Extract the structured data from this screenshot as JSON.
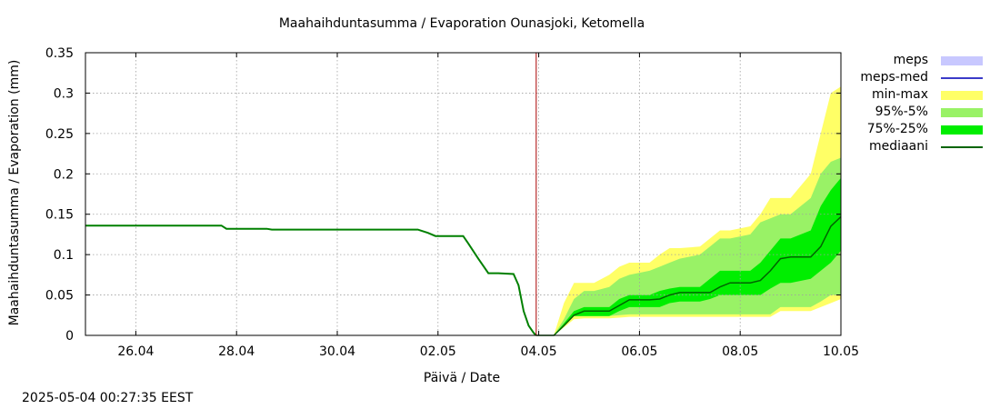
{
  "title": "Maahaihduntasumma / Evaporation   Ounasjoki, Ketomella",
  "timestamp": "2025-05-04 00:27:35 EEST",
  "chart_data": {
    "type": "area",
    "title": "Maahaihduntasumma / Evaporation   Ounasjoki, Ketomella",
    "xlabel": "Päivä / Date",
    "ylabel": "Maahaihduntasumma / Evaporation (mm)",
    "ylim": [
      0,
      0.35
    ],
    "xlim_days": [
      0,
      15
    ],
    "x_ticks": [
      {
        "day": 1,
        "label": "26.04"
      },
      {
        "day": 3,
        "label": "28.04"
      },
      {
        "day": 5,
        "label": "30.04"
      },
      {
        "day": 7,
        "label": "02.05"
      },
      {
        "day": 9,
        "label": "04.05"
      },
      {
        "day": 11,
        "label": "06.05"
      },
      {
        "day": 13,
        "label": "08.05"
      },
      {
        "day": 15,
        "label": "10.05"
      }
    ],
    "y_ticks": [
      0,
      0.05,
      0.1,
      0.15,
      0.2,
      0.25,
      0.3,
      0.35
    ],
    "grid": true,
    "legend_position": "right",
    "forecast_start_day": 8.95,
    "colors": {
      "meps": "#c8c8ff",
      "meps_med": "#3a3ac8",
      "min_max": "#ffff66",
      "p95_5": "#99f266",
      "p75_25": "#00ee00",
      "mediaani": "#006400",
      "observed": "#008000",
      "now_line": "#aa0000"
    },
    "legend": [
      {
        "key": "meps",
        "label": "meps",
        "kind": "swatch",
        "color": "#c8c8ff"
      },
      {
        "key": "meps_med",
        "label": "meps-med",
        "kind": "line",
        "color": "#3a3ac8"
      },
      {
        "key": "min_max",
        "label": "min-max",
        "kind": "swatch",
        "color": "#ffff66"
      },
      {
        "key": "p95_5",
        "label": "95%-5%",
        "kind": "swatch",
        "color": "#99f266"
      },
      {
        "key": "p75_25",
        "label": "75%-25%",
        "kind": "swatch",
        "color": "#00ee00"
      },
      {
        "key": "mediaani",
        "label": "mediaani",
        "kind": "line",
        "color": "#006400"
      }
    ],
    "observed": {
      "x": [
        0,
        2.7,
        2.8,
        3.6,
        3.7,
        6.6,
        6.8,
        6.95,
        7.5,
        7.6,
        7.8,
        8.0,
        8.2,
        8.5,
        8.6,
        8.7,
        8.8,
        8.9,
        8.95
      ],
      "y": [
        0.136,
        0.136,
        0.132,
        0.132,
        0.131,
        0.131,
        0.127,
        0.123,
        0.123,
        0.114,
        0.095,
        0.077,
        0.077,
        0.076,
        0.062,
        0.03,
        0.012,
        0.003,
        0.0
      ]
    },
    "forecast": {
      "x": [
        8.95,
        9.2,
        9.3,
        9.5,
        9.7,
        9.9,
        10.1,
        10.4,
        10.6,
        10.8,
        11.2,
        11.4,
        11.6,
        11.8,
        12.2,
        12.4,
        12.6,
        12.8,
        13.2,
        13.4,
        13.6,
        13.8,
        14.0,
        14.4,
        14.6,
        14.8,
        15.0
      ],
      "min": [
        0,
        0,
        0,
        0.01,
        0.02,
        0.021,
        0.021,
        0.021,
        0.022,
        0.023,
        0.023,
        0.023,
        0.023,
        0.023,
        0.023,
        0.023,
        0.023,
        0.023,
        0.023,
        0.023,
        0.023,
        0.03,
        0.03,
        0.03,
        0.035,
        0.04,
        0.045
      ],
      "p5": [
        0,
        0,
        0,
        0.012,
        0.024,
        0.024,
        0.024,
        0.024,
        0.025,
        0.026,
        0.026,
        0.026,
        0.026,
        0.026,
        0.026,
        0.026,
        0.026,
        0.026,
        0.026,
        0.026,
        0.026,
        0.035,
        0.035,
        0.035,
        0.042,
        0.05,
        0.05
      ],
      "p25": [
        0,
        0,
        0,
        0.013,
        0.024,
        0.024,
        0.024,
        0.024,
        0.03,
        0.035,
        0.035,
        0.035,
        0.04,
        0.042,
        0.042,
        0.045,
        0.05,
        0.05,
        0.05,
        0.05,
        0.058,
        0.065,
        0.065,
        0.07,
        0.08,
        0.09,
        0.105
      ],
      "median": [
        0,
        0,
        0,
        0.012,
        0.025,
        0.03,
        0.03,
        0.03,
        0.037,
        0.044,
        0.044,
        0.045,
        0.05,
        0.053,
        0.053,
        0.053,
        0.06,
        0.065,
        0.065,
        0.068,
        0.08,
        0.095,
        0.097,
        0.097,
        0.11,
        0.135,
        0.147
      ],
      "p75": [
        0,
        0,
        0,
        0.015,
        0.03,
        0.035,
        0.035,
        0.035,
        0.045,
        0.05,
        0.05,
        0.055,
        0.058,
        0.06,
        0.06,
        0.07,
        0.08,
        0.08,
        0.08,
        0.09,
        0.105,
        0.12,
        0.12,
        0.13,
        0.16,
        0.18,
        0.195
      ],
      "p95": [
        0,
        0,
        0,
        0.02,
        0.045,
        0.055,
        0.055,
        0.06,
        0.07,
        0.075,
        0.08,
        0.085,
        0.09,
        0.095,
        0.1,
        0.11,
        0.12,
        0.12,
        0.125,
        0.14,
        0.145,
        0.15,
        0.15,
        0.17,
        0.2,
        0.215,
        0.22
      ],
      "max": [
        0,
        0,
        0,
        0.04,
        0.065,
        0.065,
        0.065,
        0.075,
        0.085,
        0.09,
        0.09,
        0.1,
        0.108,
        0.108,
        0.11,
        0.12,
        0.13,
        0.13,
        0.135,
        0.15,
        0.17,
        0.17,
        0.17,
        0.2,
        0.25,
        0.3,
        0.308
      ]
    }
  }
}
